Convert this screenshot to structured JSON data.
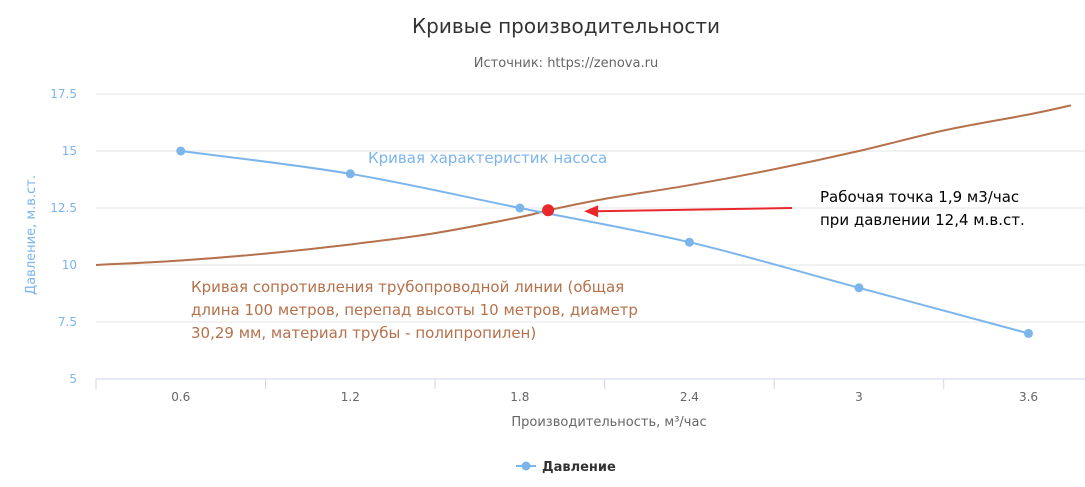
{
  "chart_data": {
    "type": "line",
    "title": "Кривые производительности",
    "subtitle": "Источник: https://zenova.ru",
    "xlabel": "Производительность, м³/час",
    "ylabel": "Давление, м.в.ст.",
    "xlim": [
      0.3,
      3.8
    ],
    "ylim": [
      5,
      17.5
    ],
    "x_ticks": [
      "0.6",
      "1.2",
      "1.8",
      "2.4",
      "3",
      "3.6"
    ],
    "y_ticks": [
      "5",
      "7.5",
      "10",
      "12.5",
      "15",
      "17.5"
    ],
    "grid": "horizontal",
    "legend": "bottom-center",
    "series": [
      {
        "name": "Давление",
        "color": "#7cb5ec",
        "x": [
          0.6,
          1.2,
          1.8,
          2.4,
          3.0,
          3.6
        ],
        "y": [
          15,
          14,
          12.5,
          11,
          9,
          7
        ]
      }
    ],
    "system_curve": {
      "color": "#b5714b",
      "x": [
        0.3,
        0.6,
        0.9,
        1.2,
        1.5,
        1.8,
        1.9,
        2.1,
        2.4,
        2.7,
        3.0,
        3.3,
        3.6,
        3.75
      ],
      "y": [
        10.0,
        10.2,
        10.5,
        10.9,
        11.4,
        12.1,
        12.4,
        12.9,
        13.5,
        14.2,
        15.0,
        15.9,
        16.6,
        17.0
      ]
    },
    "operating_point": {
      "x": 1.9,
      "y": 12.4,
      "color": "#e8282b"
    },
    "annotations": {
      "pump_curve": "Кривая характеристик насоса",
      "pipe_curve": [
        "Кривая сопротивления трубопроводной линии (общая",
        "длина 100 метров, перепад высоты 10 метров, диаметр",
        "30,29 мм, материал трубы - полипропилен)"
      ],
      "operating_point": [
        "Рабочая точка 1,9 м3/час",
        "при давлении 12,4 м.в.ст."
      ]
    }
  }
}
